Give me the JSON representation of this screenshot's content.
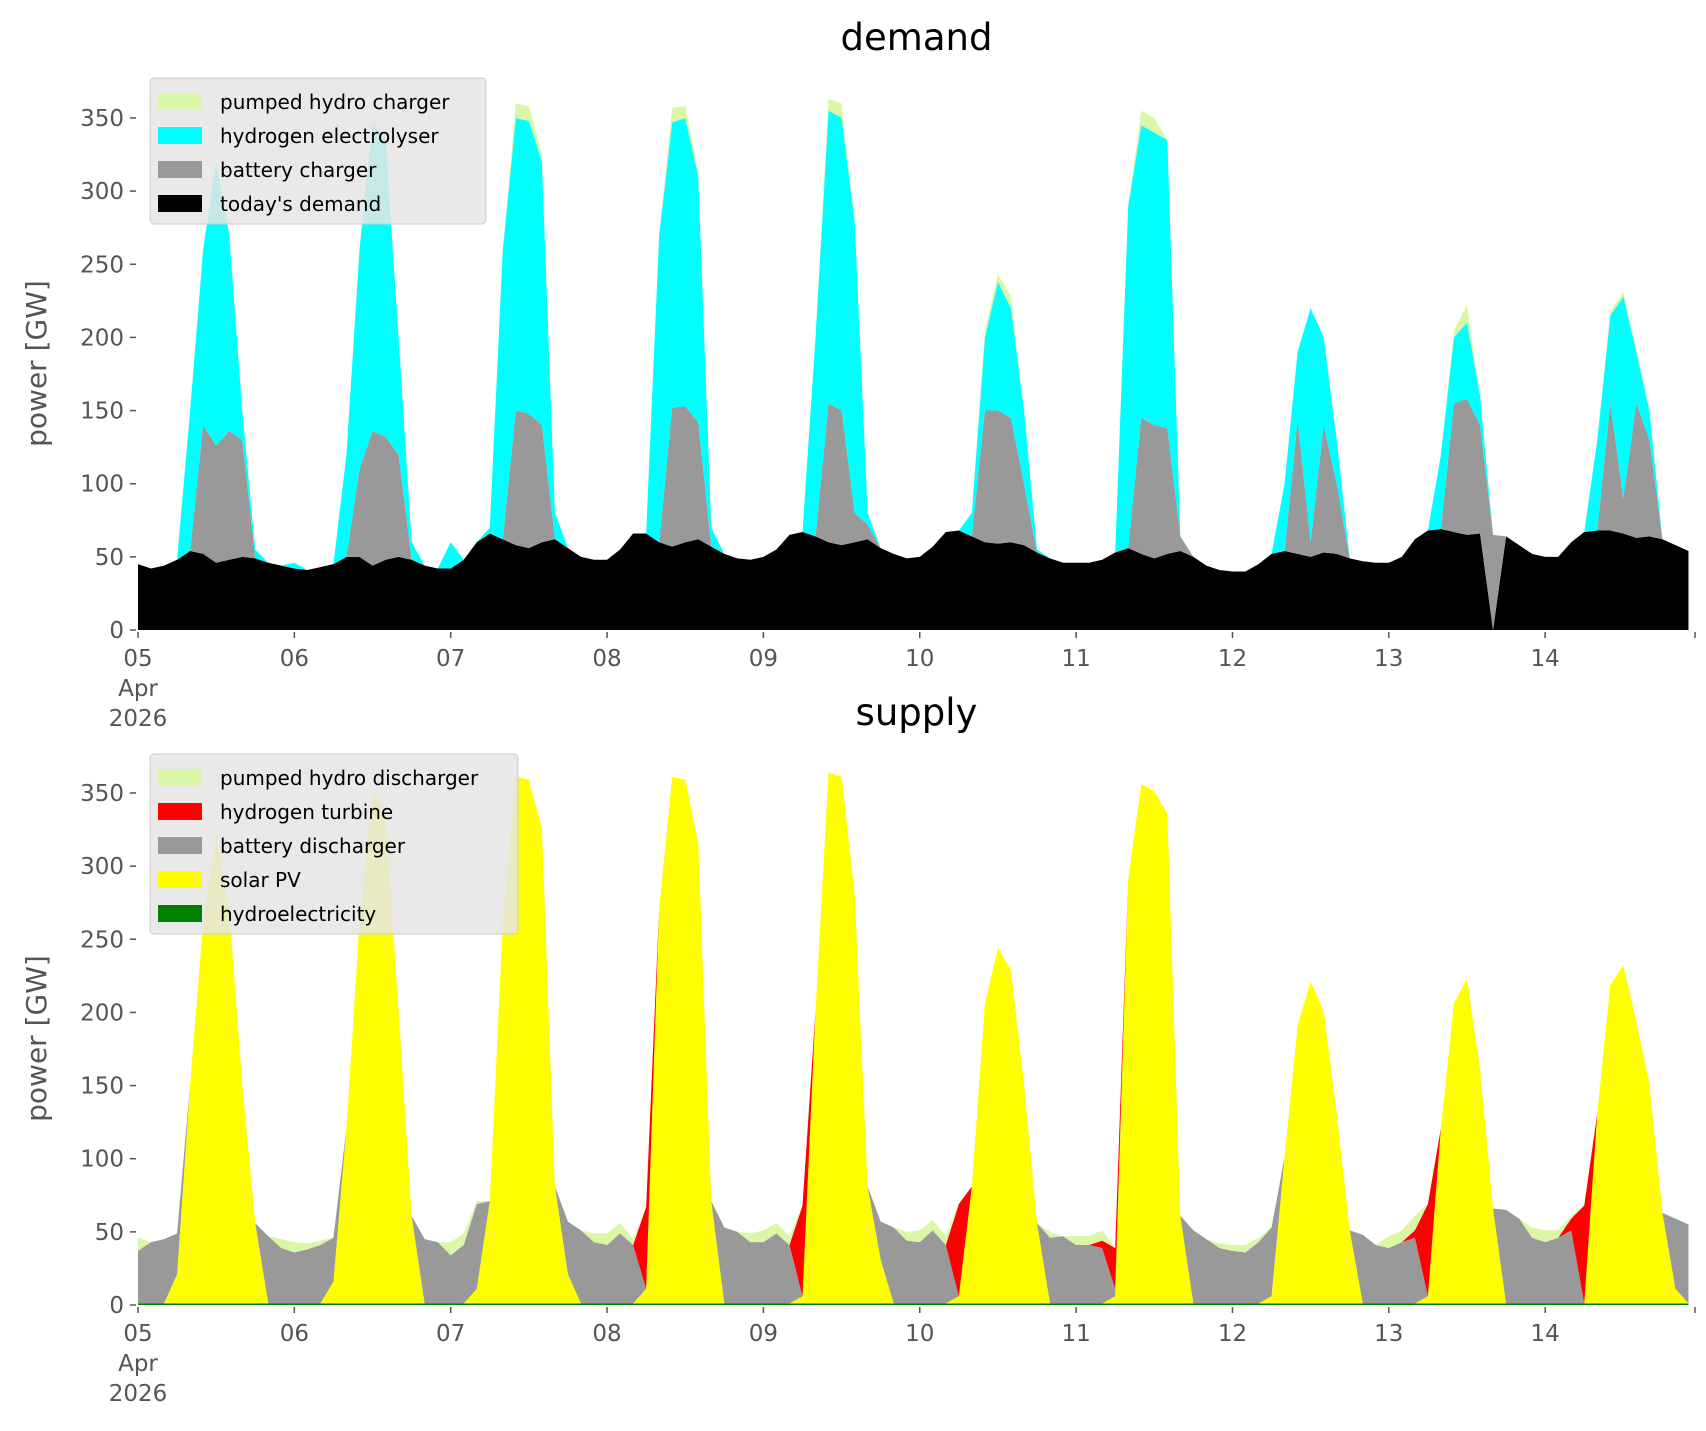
{
  "chart_data": [
    {
      "type": "area",
      "stacked": true,
      "title": "demand",
      "ylabel": "power [GW]",
      "xlabel": "",
      "ylim": [
        0,
        378
      ],
      "yticks": [
        0,
        50,
        100,
        150,
        200,
        250,
        300,
        350
      ],
      "xticks": [
        "05\nApr\n2026",
        "06",
        "07",
        "08",
        "09",
        "10",
        "11",
        "12",
        "13",
        "14"
      ],
      "x_start": "2026-04-05 00:00",
      "x_step_hours": 2,
      "x_range_hours": [
        0,
        239
      ],
      "grid": false,
      "legend_position": "upper-left",
      "series": [
        {
          "name": "pumped hydro charger",
          "color": "#d9f7a6",
          "values": [
            0,
            0,
            0,
            0,
            0,
            0,
            0,
            0,
            0,
            0,
            0,
            0,
            0,
            0,
            0,
            0,
            0,
            0,
            5,
            0,
            0,
            0,
            0,
            0,
            0,
            0,
            0,
            0,
            0,
            10,
            10,
            5,
            0,
            0,
            0,
            0,
            0,
            0,
            0,
            0,
            0,
            10,
            8,
            5,
            0,
            0,
            0,
            0,
            0,
            0,
            0,
            0,
            0,
            8,
            10,
            0,
            0,
            0,
            0,
            0,
            0,
            0,
            0,
            0,
            0,
            5,
            5,
            8,
            0,
            0,
            0,
            0,
            0,
            0,
            0,
            0,
            0,
            10,
            10,
            0,
            0,
            0,
            0,
            0,
            0,
            0,
            0,
            0,
            0,
            0,
            0,
            0,
            0,
            0,
            0,
            0,
            0,
            0,
            0,
            0,
            0,
            5,
            12,
            0,
            0,
            0,
            0,
            0,
            0,
            0,
            0,
            0,
            0,
            3,
            3,
            3,
            0,
            0,
            0,
            0
          ]
        },
        {
          "name": "hydrogen electrolyser",
          "color": "#00ffff",
          "values": [
            0,
            0,
            0,
            0,
            96,
            120,
            194,
            134,
            20,
            6,
            0,
            0,
            4,
            0,
            0,
            0,
            70,
            150,
            209,
            203,
            80,
            12,
            0,
            0,
            18,
            0,
            0,
            4,
            198,
            200,
            200,
            180,
            18,
            0,
            0,
            0,
            0,
            0,
            0,
            0,
            210,
            195,
            197,
            168,
            13,
            0,
            0,
            0,
            0,
            0,
            0,
            0,
            136,
            200,
            200,
            200,
            8,
            0,
            0,
            0,
            0,
            0,
            0,
            0,
            16,
            50,
            88,
            75,
            50,
            2,
            0,
            0,
            0,
            0,
            0,
            0,
            234,
            200,
            200,
            197,
            0,
            0,
            0,
            0,
            0,
            0,
            0,
            0,
            46,
            47,
            160,
            60,
            30,
            0,
            0,
            0,
            0,
            0,
            0,
            0,
            51,
            45,
            52,
            20,
            0,
            0,
            0,
            0,
            0,
            0,
            0,
            0,
            62,
            60,
            138,
            35,
            20,
            0,
            0,
            0
          ]
        },
        {
          "name": "battery charger",
          "color": "#999999",
          "values": [
            0,
            0,
            0,
            0,
            0,
            88,
            80,
            88,
            80,
            0,
            0,
            0,
            0,
            0,
            0,
            0,
            0,
            60,
            92,
            84,
            70,
            0,
            0,
            0,
            0,
            0,
            0,
            0,
            0,
            92,
            92,
            80,
            0,
            0,
            0,
            0,
            0,
            0,
            0,
            0,
            0,
            95,
            93,
            80,
            0,
            0,
            0,
            0,
            0,
            0,
            0,
            0,
            0,
            95,
            92,
            20,
            10,
            0,
            0,
            0,
            0,
            0,
            0,
            0,
            0,
            90,
            91,
            85,
            42,
            0,
            0,
            0,
            0,
            0,
            0,
            0,
            0,
            93,
            91,
            86,
            10,
            0,
            0,
            0,
            0,
            0,
            0,
            0,
            0,
            91,
            10,
            87,
            48,
            0,
            0,
            0,
            0,
            0,
            0,
            0,
            0,
            88,
            93,
            74,
            65,
            0,
            0,
            0,
            0,
            0,
            0,
            0,
            0,
            87,
            24,
            92,
            66,
            0,
            0,
            0
          ]
        },
        {
          "name": "today's demand",
          "color": "#000000",
          "values": [
            45,
            42,
            44,
            48,
            54,
            52,
            46,
            48,
            50,
            49,
            46,
            44,
            42,
            41,
            43,
            45,
            50,
            50,
            44,
            48,
            50,
            48,
            44,
            42,
            42,
            48,
            60,
            66,
            62,
            58,
            56,
            60,
            62,
            56,
            50,
            48,
            48,
            55,
            66,
            66,
            60,
            57,
            60,
            62,
            57,
            52,
            49,
            48,
            50,
            55,
            65,
            67,
            64,
            60,
            58,
            60,
            62,
            56,
            52,
            49,
            50,
            57,
            67,
            68,
            64,
            60,
            59,
            60,
            58,
            53,
            49,
            46,
            46,
            46,
            48,
            53,
            56,
            52,
            49,
            52,
            54,
            50,
            44,
            41,
            40,
            40,
            45,
            52,
            54,
            52,
            50,
            53,
            52,
            49,
            47,
            46,
            46,
            50,
            62,
            68,
            69,
            67,
            65,
            66,
            0,
            64,
            58,
            52,
            50,
            50,
            60,
            67,
            68,
            68,
            66,
            63,
            64,
            62,
            58,
            54
          ]
        }
      ]
    },
    {
      "type": "area",
      "stacked": true,
      "title": "supply",
      "ylabel": "power [GW]",
      "xlabel": "",
      "ylim": [
        0,
        378
      ],
      "yticks": [
        0,
        50,
        100,
        150,
        200,
        250,
        300,
        350
      ],
      "xticks": [
        "05\nApr\n2026",
        "06",
        "07",
        "08",
        "09",
        "10",
        "11",
        "12",
        "13",
        "14"
      ],
      "x_start": "2026-04-05 00:00",
      "x_step_hours": 2,
      "x_range_hours": [
        0,
        239
      ],
      "grid": false,
      "legend_position": "upper-left",
      "series": [
        {
          "name": "pumped hydro discharger",
          "color": "#d9f7a6",
          "values": [
            9,
            0,
            0,
            0,
            0,
            0,
            0,
            0,
            0,
            0,
            0,
            6,
            7,
            4,
            3,
            0,
            0,
            0,
            0,
            0,
            0,
            0,
            0,
            0,
            9,
            8,
            2,
            0,
            0,
            0,
            0,
            0,
            0,
            0,
            0,
            6,
            8,
            7,
            4,
            0,
            0,
            0,
            0,
            0,
            0,
            0,
            0,
            6,
            8,
            7,
            6,
            0,
            0,
            0,
            0,
            0,
            0,
            0,
            0,
            6,
            8,
            7,
            6,
            0,
            0,
            0,
            0,
            0,
            0,
            0,
            4,
            0,
            6,
            6,
            7,
            0,
            0,
            0,
            0,
            0,
            0,
            0,
            0,
            3,
            4,
            5,
            3,
            0,
            0,
            0,
            0,
            0,
            0,
            0,
            0,
            0,
            8,
            8,
            10,
            0,
            0,
            0,
            0,
            0,
            0,
            0,
            0,
            7,
            8,
            5,
            2,
            0,
            0,
            0,
            0,
            0,
            0,
            0,
            0,
            0
          ]
        },
        {
          "name": "hydrogen turbine",
          "color": "#ff0000",
          "values": [
            0,
            0,
            0,
            0,
            0,
            0,
            0,
            0,
            0,
            0,
            0,
            0,
            0,
            0,
            0,
            0,
            0,
            0,
            0,
            0,
            0,
            0,
            0,
            0,
            0,
            0,
            0,
            0,
            0,
            0,
            0,
            0,
            0,
            0,
            0,
            0,
            0,
            0,
            0,
            56,
            0,
            0,
            0,
            0,
            0,
            0,
            0,
            0,
            0,
            0,
            0,
            62,
            0,
            0,
            0,
            0,
            0,
            0,
            0,
            0,
            0,
            0,
            0,
            63,
            0,
            0,
            0,
            0,
            0,
            0,
            0,
            0,
            0,
            0,
            5,
            28,
            0,
            0,
            0,
            0,
            0,
            0,
            0,
            0,
            0,
            0,
            0,
            0,
            0,
            0,
            0,
            0,
            0,
            0,
            0,
            0,
            0,
            0,
            5,
            63,
            0,
            0,
            0,
            0,
            0,
            0,
            0,
            0,
            0,
            0,
            8,
            67,
            0,
            0,
            0,
            0,
            0,
            0,
            0,
            0
          ]
        },
        {
          "name": "battery discharger",
          "color": "#999999",
          "values": [
            36,
            42,
            44,
            28,
            0,
            0,
            0,
            0,
            0,
            0,
            46,
            38,
            35,
            37,
            40,
            30,
            0,
            0,
            0,
            0,
            0,
            0,
            44,
            42,
            33,
            40,
            58,
            0,
            0,
            0,
            0,
            0,
            0,
            36,
            50,
            42,
            40,
            48,
            40,
            0,
            0,
            0,
            0,
            0,
            0,
            52,
            49,
            42,
            42,
            48,
            40,
            0,
            0,
            0,
            0,
            0,
            0,
            26,
            52,
            43,
            42,
            50,
            40,
            0,
            0,
            0,
            0,
            0,
            0,
            0,
            45,
            46,
            40,
            40,
            38,
            5,
            0,
            0,
            0,
            0,
            0,
            50,
            44,
            38,
            36,
            35,
            42,
            47,
            0,
            0,
            0,
            0,
            0,
            0,
            47,
            40,
            38,
            42,
            45,
            0,
            0,
            0,
            0,
            0,
            0,
            64,
            58,
            45,
            42,
            45,
            50,
            0,
            0,
            0,
            0,
            0,
            0,
            0,
            48,
            54
          ]
        },
        {
          "name": "solar PV",
          "color": "#ffff00",
          "values": [
            0,
            0,
            0,
            20,
            150,
            260,
            320,
            270,
            150,
            55,
            0,
            0,
            0,
            0,
            0,
            15,
            120,
            260,
            350,
            335,
            200,
            60,
            0,
            0,
            0,
            0,
            10,
            70,
            260,
            360,
            358,
            325,
            80,
            20,
            0,
            0,
            0,
            0,
            0,
            10,
            270,
            360,
            358,
            315,
            70,
            0,
            0,
            0,
            0,
            0,
            0,
            5,
            200,
            363,
            360,
            280,
            80,
            30,
            0,
            0,
            0,
            0,
            0,
            5,
            80,
            205,
            243,
            228,
            150,
            55,
            0,
            0,
            0,
            0,
            0,
            5,
            290,
            355,
            350,
            335,
            60,
            0,
            0,
            0,
            0,
            0,
            0,
            5,
            100,
            190,
            220,
            200,
            130,
            50,
            0,
            0,
            0,
            0,
            0,
            5,
            120,
            205,
            222,
            160,
            65,
            0,
            0,
            0,
            0,
            0,
            0,
            0,
            130,
            218,
            231,
            193,
            150,
            62,
            10,
            0
          ]
        },
        {
          "name": "hydroelectricity",
          "color": "#008000",
          "values": [
            1,
            1,
            1,
            1,
            1,
            1,
            1,
            1,
            1,
            1,
            1,
            1,
            1,
            1,
            1,
            1,
            1,
            1,
            1,
            1,
            1,
            1,
            1,
            1,
            1,
            1,
            1,
            1,
            1,
            1,
            1,
            1,
            1,
            1,
            1,
            1,
            1,
            1,
            1,
            1,
            1,
            1,
            1,
            1,
            1,
            1,
            1,
            1,
            1,
            1,
            1,
            1,
            1,
            1,
            1,
            1,
            1,
            1,
            1,
            1,
            1,
            1,
            1,
            1,
            1,
            1,
            1,
            1,
            1,
            1,
            1,
            1,
            1,
            1,
            1,
            1,
            1,
            1,
            1,
            1,
            1,
            1,
            1,
            1,
            1,
            1,
            1,
            1,
            1,
            1,
            1,
            1,
            1,
            1,
            1,
            1,
            1,
            1,
            1,
            1,
            1,
            1,
            1,
            1,
            1,
            1,
            1,
            1,
            1,
            1,
            1,
            1,
            1,
            1,
            1,
            1,
            1,
            1,
            1,
            1
          ]
        }
      ]
    }
  ]
}
